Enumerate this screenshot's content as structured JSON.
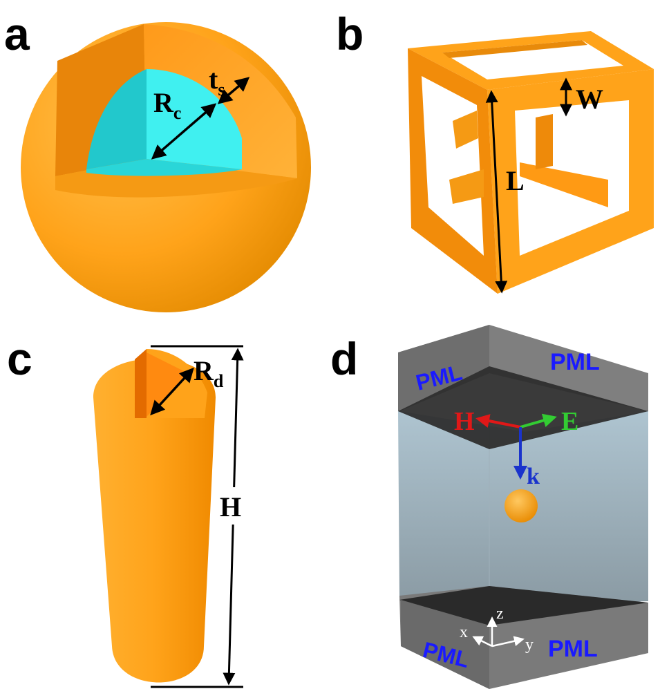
{
  "panels": {
    "a": {
      "letter": "a",
      "labels": {
        "core_radius_main": "R",
        "core_radius_sub": "c",
        "shell_thickness_main": "t",
        "shell_thickness_sub": "s"
      }
    },
    "b": {
      "letter": "b",
      "labels": {
        "wall_width": "W",
        "edge_length": "L"
      }
    },
    "c": {
      "letter": "c",
      "labels": {
        "cap_radius_main": "R",
        "cap_radius_sub": "d",
        "height": "H"
      }
    },
    "d": {
      "letter": "d",
      "labels": {
        "pml_top_left": "PML",
        "pml_top_right": "PML",
        "pml_bottom_left": "PML",
        "pml_bottom_right": "PML",
        "h_field": "H",
        "e_field": "E",
        "k_vector": "k",
        "axis_x": "x",
        "axis_y": "y",
        "axis_z": "z"
      }
    }
  },
  "colors": {
    "gold": "#ffa31a",
    "gold_dark": "#e07f00",
    "cyan_core": "#33e6e6",
    "pml_blue": "#1a1aff",
    "h_red": "#e01818",
    "e_green": "#33cc33",
    "k_blue": "#1a33cc"
  }
}
